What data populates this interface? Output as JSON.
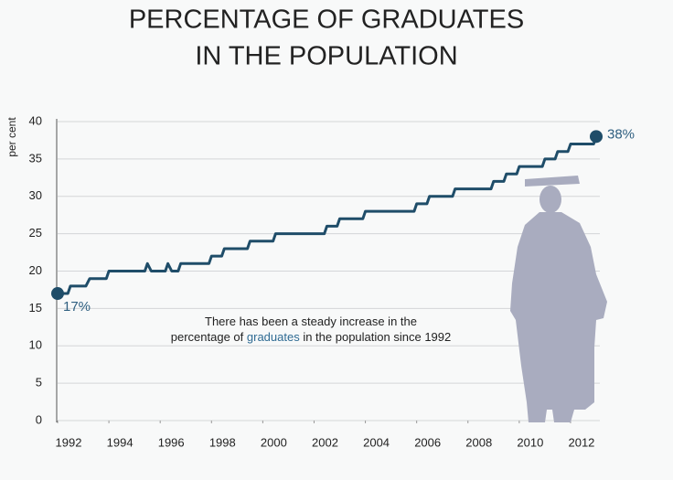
{
  "chart_data": {
    "type": "line",
    "title": [
      "PERCENTAGE OF GRADUATES",
      "IN THE POPULATION"
    ],
    "y_label": "per cent",
    "xlim": [
      1992,
      2013
    ],
    "xticks": [
      1992,
      1994,
      1996,
      1998,
      2000,
      2002,
      2004,
      2006,
      2008,
      2010,
      2012
    ],
    "ylim": [
      0,
      40
    ],
    "yticks": [
      0,
      5,
      10,
      15,
      20,
      25,
      30,
      35,
      40
    ],
    "grid": true,
    "series": [
      {
        "color": "#1f4d69",
        "x": [
          1992,
          1992.4,
          1992.5,
          1993.1,
          1993.25,
          1993.9,
          1994,
          1995.4,
          1995.5,
          1995.65,
          1996.2,
          1996.3,
          1996.45,
          1996.7,
          1996.8,
          1997.9,
          1998,
          1998.4,
          1998.5,
          1999.4,
          1999.5,
          2000.4,
          2000.5,
          2002.4,
          2002.5,
          2002.9,
          2003,
          2003.9,
          2004,
          2005.9,
          2006,
          2006.4,
          2006.5,
          2007.4,
          2007.5,
          2008.9,
          2009,
          2009.4,
          2009.5,
          2009.9,
          2010,
          2010.9,
          2011,
          2011.4,
          2011.5,
          2011.9,
          2012,
          2012.9,
          2013
        ],
        "values": [
          17,
          17,
          18,
          18,
          19,
          19,
          20,
          20,
          21,
          20,
          20,
          21,
          20,
          20,
          21,
          21,
          22,
          22,
          23,
          23,
          24,
          24,
          25,
          25,
          26,
          26,
          27,
          27,
          28,
          28,
          29,
          29,
          30,
          30,
          31,
          31,
          32,
          32,
          33,
          33,
          34,
          34,
          35,
          35,
          36,
          36,
          37,
          37,
          38
        ],
        "value_labels": [
          "17%",
          null,
          null,
          null,
          null,
          null,
          null,
          null,
          null,
          null,
          null,
          null,
          null,
          null,
          null,
          null,
          null,
          null,
          null,
          null,
          null,
          null,
          null,
          null,
          null,
          null,
          null,
          null,
          null,
          null,
          null,
          null,
          null,
          null,
          null,
          null,
          null,
          null,
          null,
          null,
          null,
          null,
          null,
          null,
          null,
          null,
          null,
          null,
          "38%"
        ]
      }
    ],
    "annotation": [
      "There has been a steady increase in the",
      [
        "percentage of ",
        "graduates",
        " in the population since 1992"
      ]
    ]
  }
}
